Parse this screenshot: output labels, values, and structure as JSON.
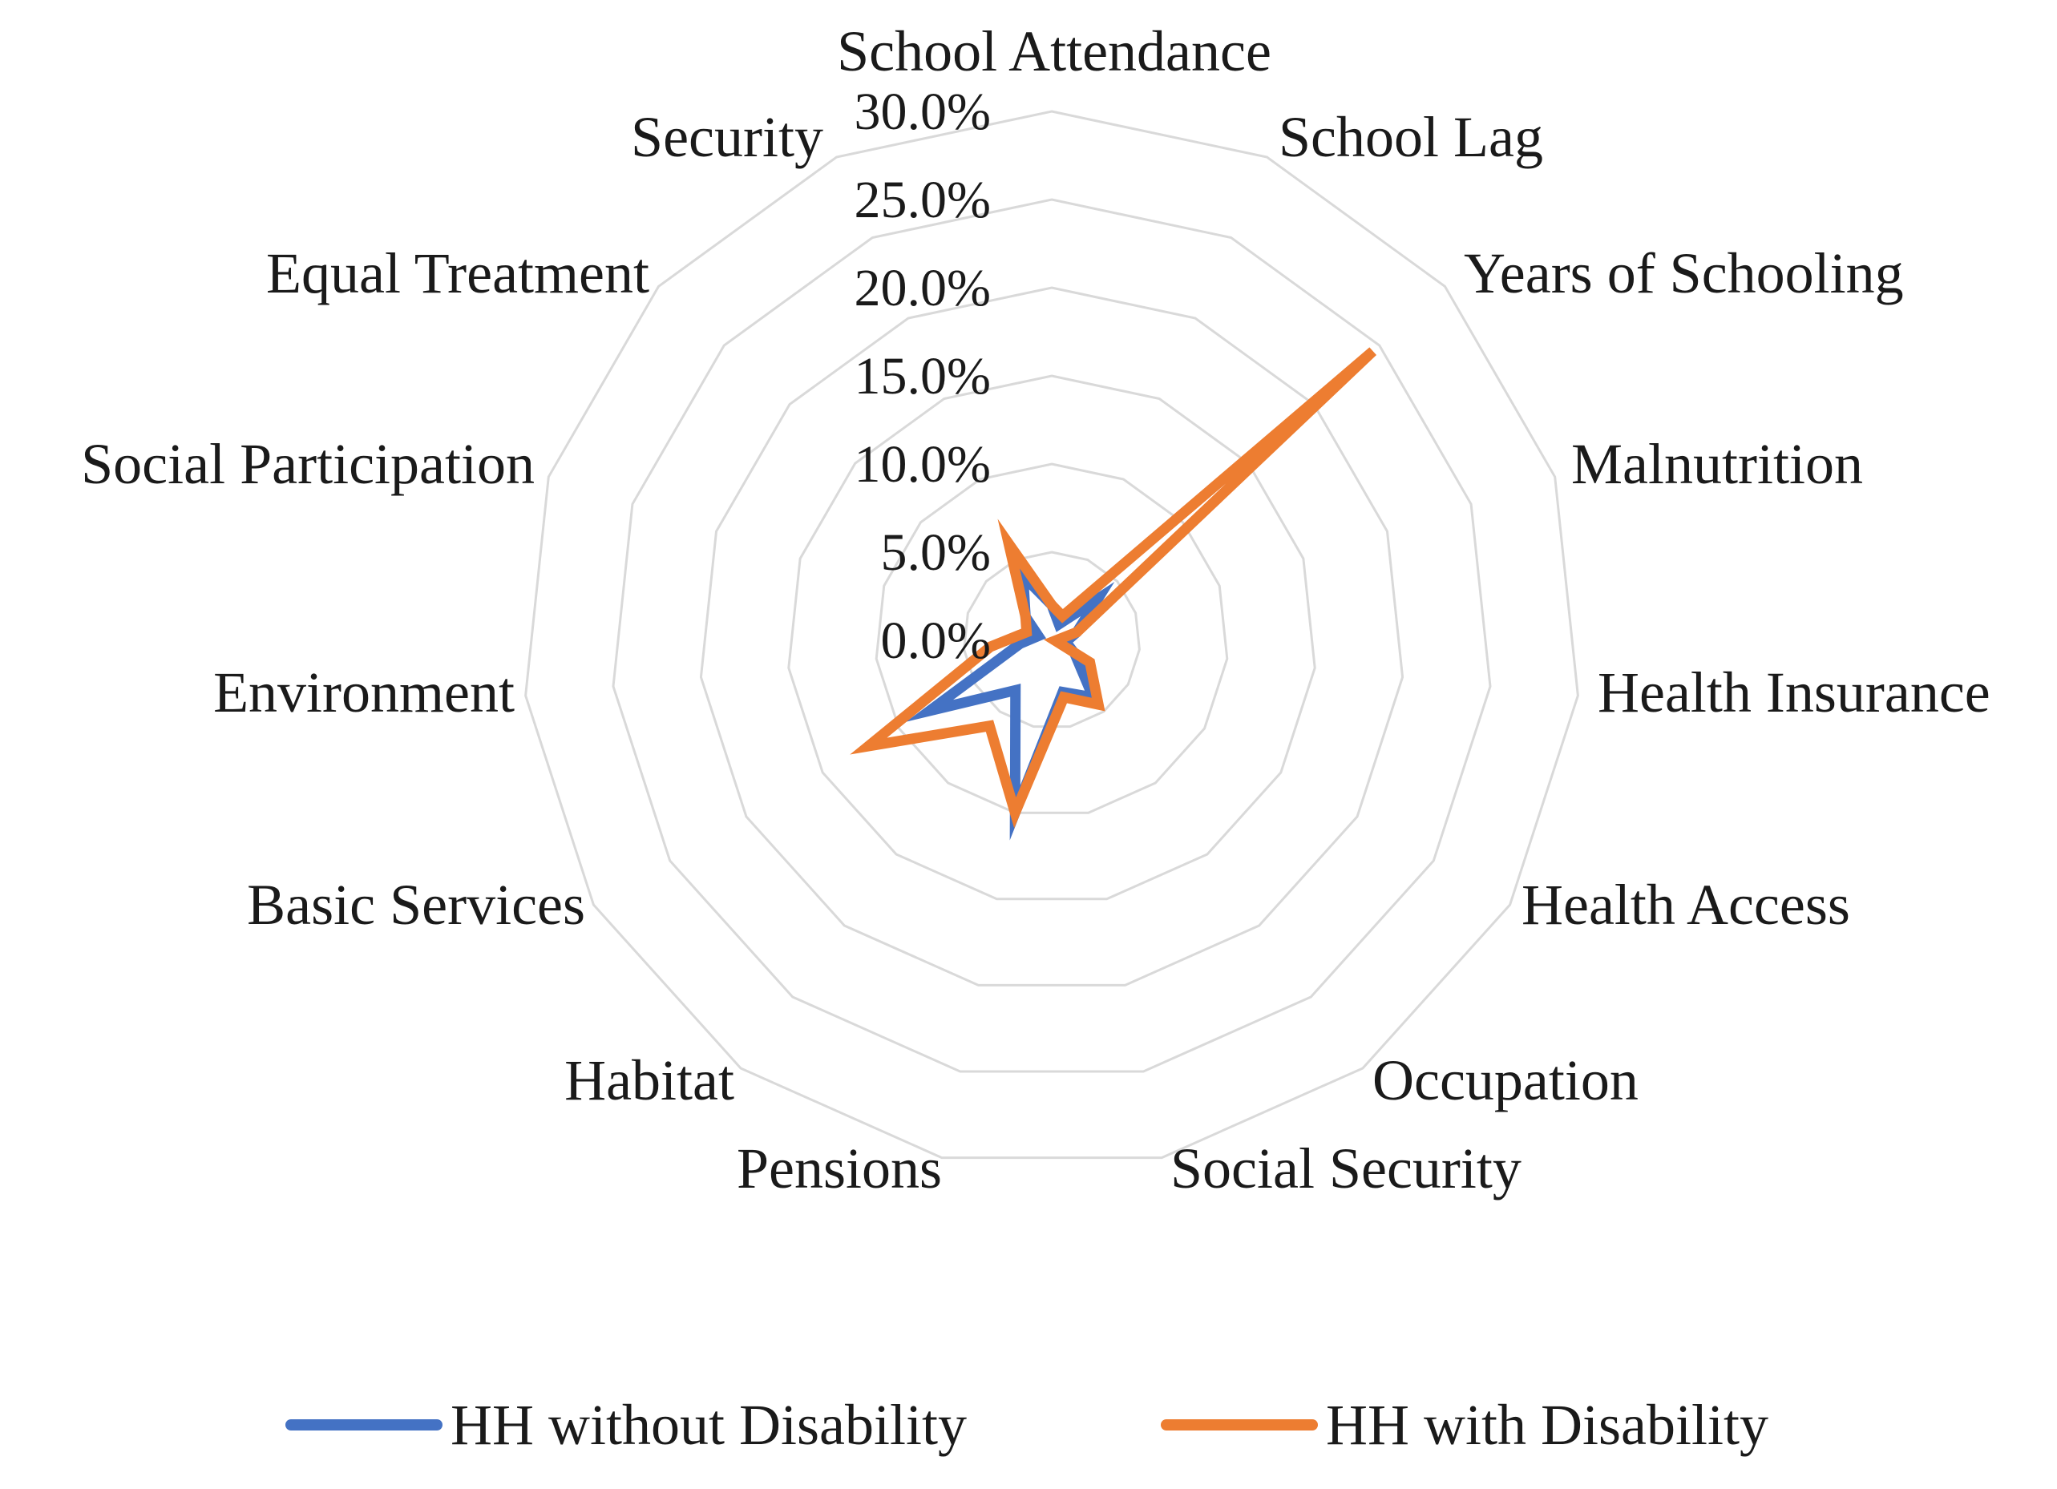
{
  "chart_data": {
    "type": "radar",
    "title": "",
    "categories": [
      "School Attendance",
      "School Lag",
      "Years of Schooling",
      "Malnutrition",
      "Health Insurance",
      "Health Access",
      "Occupation",
      "Social Security",
      "Pensions",
      "Habitat",
      "Basic Services",
      "Environment",
      "Social Participation",
      "Equal Treatment",
      "Security"
    ],
    "ticks": [
      "0.0%",
      "5.0%",
      "10.0%",
      "15.0%",
      "20.0%",
      "25.0%",
      "30.0%"
    ],
    "rlim": [
      0,
      30
    ],
    "series": [
      {
        "name": "HH without Disability",
        "color": "#4472C4",
        "values": [
          2.0,
          1.0,
          3.5,
          1.5,
          0.8,
          1.5,
          4.0,
          3.0,
          10.0,
          3.5,
          8.0,
          1.8,
          0.8,
          2.0,
          4.0
        ]
      },
      {
        "name": "HH with Disability",
        "color": "#ED7D31",
        "values": [
          2.0,
          1.5,
          24.5,
          1.5,
          0.2,
          2.5,
          4.5,
          3.3,
          10.0,
          6.0,
          12.0,
          3.5,
          1.5,
          2.0,
          6.0
        ]
      }
    ],
    "grid": true,
    "legend_position": "bottom"
  }
}
